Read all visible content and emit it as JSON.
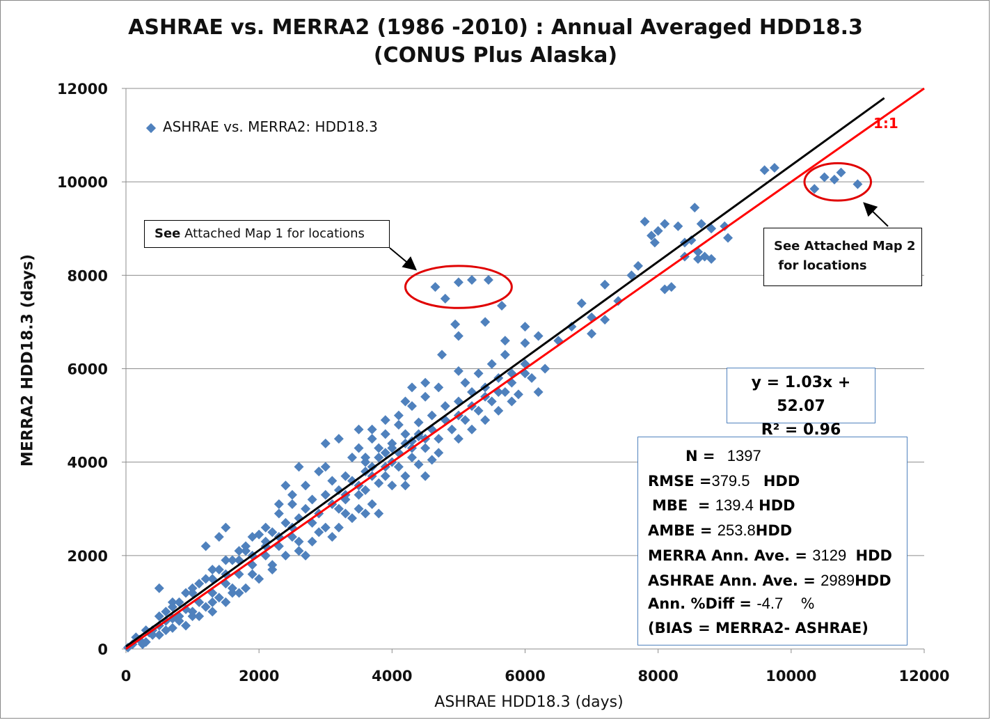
{
  "chart_data": {
    "type": "scatter",
    "title": "ASHRAE vs. MERRA2 (1986 -2010) : Annual Averaged HDD18.3",
    "subtitle": "(CONUS Plus Alaska)",
    "xlabel": "ASHRAE HDD18.3 (days)",
    "ylabel": "MERRA2 HDD18.3 (days)",
    "xlim": [
      0,
      12000
    ],
    "ylim": [
      0,
      12000
    ],
    "xticks": [
      "0",
      "2000",
      "4000",
      "6000",
      "8000",
      "10000",
      "12000"
    ],
    "yticks": [
      "0",
      "2000",
      "4000",
      "6000",
      "8000",
      "10000",
      "12000"
    ],
    "grid": "horizontal",
    "legend_position": "top-left",
    "series": [
      {
        "name": "ASHRAE vs. MERRA2: HDD18.3",
        "color": "#4f81bd",
        "marker": "diamond",
        "points": [
          [
            4650,
            7750
          ],
          [
            4800,
            7500
          ],
          [
            5000,
            7850
          ],
          [
            5200,
            7900
          ],
          [
            5450,
            7900
          ],
          [
            5650,
            7350
          ],
          [
            4950,
            6950
          ],
          [
            5000,
            6700
          ],
          [
            5400,
            7000
          ],
          [
            4750,
            6300
          ],
          [
            5000,
            5950
          ],
          [
            5700,
            6600
          ],
          [
            6000,
            6900
          ],
          [
            6000,
            6550
          ],
          [
            6200,
            6700
          ],
          [
            6500,
            6600
          ],
          [
            6850,
            7400
          ],
          [
            6700,
            6900
          ],
          [
            7000,
            7100
          ],
          [
            7000,
            6750
          ],
          [
            7200,
            7050
          ],
          [
            7200,
            7800
          ],
          [
            7400,
            7450
          ],
          [
            7600,
            8000
          ],
          [
            7700,
            8200
          ],
          [
            7800,
            9150
          ],
          [
            7900,
            8850
          ],
          [
            8000,
            8950
          ],
          [
            7950,
            8700
          ],
          [
            8100,
            9100
          ],
          [
            8300,
            9050
          ],
          [
            8500,
            8750
          ],
          [
            8550,
            9450
          ],
          [
            8650,
            9100
          ],
          [
            8800,
            9000
          ],
          [
            8400,
            8700
          ],
          [
            8600,
            8500
          ],
          [
            8200,
            7750
          ],
          [
            8100,
            7700
          ],
          [
            8400,
            8400
          ],
          [
            8600,
            8350
          ],
          [
            8700,
            8400
          ],
          [
            8800,
            8350
          ],
          [
            9000,
            9050
          ],
          [
            9050,
            8800
          ],
          [
            9600,
            10250
          ],
          [
            9750,
            10300
          ],
          [
            10350,
            9850
          ],
          [
            10500,
            10100
          ],
          [
            10650,
            10050
          ],
          [
            10750,
            10200
          ],
          [
            11000,
            9950
          ],
          [
            4400,
            4550
          ],
          [
            4300,
            4450
          ],
          [
            4600,
            4050
          ],
          [
            4500,
            3700
          ],
          [
            4200,
            3500
          ],
          [
            3000,
            4400
          ],
          [
            3500,
            4700
          ],
          [
            2600,
            3900
          ],
          [
            2900,
            3800
          ],
          [
            2400,
            3500
          ],
          [
            1500,
            2600
          ],
          [
            1400,
            2400
          ],
          [
            1200,
            2200
          ],
          [
            1800,
            2200
          ],
          [
            2000,
            2450
          ],
          [
            2300,
            3100
          ],
          [
            2500,
            2600
          ],
          [
            2200,
            2500
          ],
          [
            2800,
            3200
          ],
          [
            3100,
            3600
          ],
          [
            3300,
            3700
          ],
          [
            3600,
            3800
          ],
          [
            3700,
            3900
          ],
          [
            3900,
            4200
          ],
          [
            4000,
            4400
          ],
          [
            4200,
            4600
          ],
          [
            4400,
            4850
          ],
          [
            4600,
            5000
          ],
          [
            4800,
            5200
          ],
          [
            5000,
            5300
          ],
          [
            5200,
            5500
          ],
          [
            5400,
            5600
          ],
          [
            5600,
            5800
          ],
          [
            5800,
            5900
          ],
          [
            6000,
            6100
          ],
          [
            3300,
            3200
          ],
          [
            3500,
            3300
          ],
          [
            3800,
            3550
          ],
          [
            3800,
            2900
          ],
          [
            3200,
            3000
          ],
          [
            2800,
            2700
          ],
          [
            2500,
            2400
          ],
          [
            2300,
            2200
          ],
          [
            2100,
            2000
          ],
          [
            1900,
            1800
          ],
          [
            1700,
            1600
          ],
          [
            1500,
            1400
          ],
          [
            1300,
            1200
          ],
          [
            1100,
            1000
          ],
          [
            900,
            850
          ],
          [
            700,
            650
          ],
          [
            500,
            500
          ],
          [
            350,
            350
          ],
          [
            200,
            200
          ],
          [
            100,
            100
          ],
          [
            30,
            30
          ],
          [
            1000,
            1300
          ],
          [
            700,
            1000
          ],
          [
            500,
            1300
          ],
          [
            1800,
            1300
          ],
          [
            1600,
            1200
          ],
          [
            1400,
            1100
          ],
          [
            1200,
            900
          ],
          [
            1000,
            700
          ],
          [
            800,
            600
          ],
          [
            600,
            400
          ],
          [
            400,
            300
          ],
          [
            300,
            150
          ],
          [
            2200,
            1800
          ],
          [
            2600,
            2100
          ],
          [
            2800,
            2300
          ],
          [
            3000,
            2600
          ],
          [
            3300,
            2900
          ],
          [
            3500,
            3000
          ],
          [
            3700,
            3100
          ],
          [
            4000,
            3500
          ],
          [
            4200,
            3700
          ],
          [
            4400,
            3950
          ],
          [
            4700,
            4200
          ],
          [
            5000,
            4500
          ],
          [
            5200,
            4700
          ],
          [
            5400,
            4900
          ],
          [
            5600,
            5100
          ],
          [
            5800,
            5300
          ],
          [
            6100,
            5800
          ],
          [
            6300,
            6000
          ],
          [
            6200,
            5500
          ],
          [
            5900,
            5450
          ],
          [
            2000,
            1500
          ],
          [
            1700,
            1200
          ],
          [
            2700,
            2000
          ],
          [
            3100,
            2400
          ],
          [
            3600,
            3400
          ],
          [
            3900,
            3700
          ],
          [
            4100,
            3900
          ],
          [
            4300,
            4100
          ],
          [
            4500,
            4300
          ],
          [
            4700,
            4500
          ],
          [
            4900,
            4700
          ],
          [
            5100,
            4900
          ],
          [
            5300,
            5100
          ],
          [
            5500,
            5300
          ],
          [
            5700,
            5500
          ],
          [
            2100,
            2300
          ],
          [
            2400,
            2700
          ],
          [
            2700,
            3000
          ],
          [
            3000,
            3300
          ],
          [
            3200,
            3400
          ],
          [
            3400,
            3600
          ],
          [
            3600,
            4100
          ],
          [
            3800,
            4300
          ],
          [
            4100,
            4800
          ],
          [
            4300,
            5200
          ],
          [
            4500,
            5400
          ],
          [
            4700,
            5600
          ],
          [
            5100,
            5700
          ],
          [
            5300,
            5900
          ],
          [
            5500,
            6100
          ],
          [
            5700,
            6300
          ],
          [
            600,
            800
          ],
          [
            800,
            1000
          ],
          [
            1000,
            1200
          ],
          [
            1200,
            1500
          ],
          [
            1400,
            1700
          ],
          [
            1600,
            1900
          ],
          [
            1800,
            2100
          ],
          [
            3500,
            4300
          ],
          [
            3700,
            4500
          ],
          [
            3900,
            4600
          ],
          [
            4100,
            4200
          ],
          [
            4300,
            4300
          ],
          [
            4500,
            4500
          ],
          [
            4600,
            4700
          ],
          [
            4800,
            4900
          ],
          [
            5000,
            5000
          ],
          [
            5200,
            5200
          ],
          [
            5400,
            5400
          ],
          [
            5600,
            5500
          ],
          [
            5800,
            5700
          ],
          [
            6000,
            5900
          ],
          [
            2500,
            3100
          ],
          [
            2600,
            2800
          ],
          [
            2900,
            2900
          ],
          [
            3100,
            3100
          ],
          [
            3300,
            3300
          ],
          [
            3500,
            3500
          ],
          [
            3700,
            3700
          ],
          [
            3900,
            3900
          ],
          [
            4000,
            4000
          ],
          [
            1300,
            1500
          ],
          [
            1500,
            1600
          ],
          [
            1700,
            1900
          ],
          [
            1900,
            2000
          ],
          [
            2100,
            2200
          ],
          [
            2300,
            2400
          ],
          [
            3400,
            4100
          ],
          [
            3600,
            4000
          ],
          [
            3800,
            4100
          ],
          [
            4000,
            4300
          ],
          [
            4200,
            4400
          ],
          [
            4400,
            4600
          ],
          [
            3200,
            4500
          ],
          [
            3000,
            3900
          ],
          [
            2700,
            3500
          ],
          [
            2500,
            3300
          ],
          [
            2300,
            2900
          ],
          [
            2100,
            2600
          ],
          [
            1900,
            2400
          ],
          [
            1700,
            2100
          ],
          [
            1500,
            1900
          ],
          [
            1300,
            1700
          ],
          [
            1100,
            1400
          ],
          [
            900,
            1200
          ],
          [
            700,
            900
          ],
          [
            500,
            700
          ],
          [
            300,
            400
          ],
          [
            150,
            250
          ],
          [
            1500,
            1000
          ],
          [
            1300,
            800
          ],
          [
            1100,
            700
          ],
          [
            900,
            500
          ],
          [
            700,
            450
          ],
          [
            500,
            300
          ],
          [
            250,
            100
          ],
          [
            3700,
            4700
          ],
          [
            3900,
            4900
          ],
          [
            4100,
            5000
          ],
          [
            4300,
            5600
          ],
          [
            4500,
            5700
          ],
          [
            4200,
            5300
          ],
          [
            3400,
            2800
          ],
          [
            3600,
            2900
          ],
          [
            3200,
            2600
          ],
          [
            2900,
            2500
          ],
          [
            2600,
            2300
          ],
          [
            2400,
            2000
          ],
          [
            2200,
            1700
          ],
          [
            1900,
            1600
          ],
          [
            1600,
            1300
          ],
          [
            1300,
            1000
          ],
          [
            1000,
            800
          ],
          [
            800,
            700
          ],
          [
            600,
            600
          ],
          [
            400,
            400
          ]
        ]
      }
    ],
    "lines": [
      {
        "name": "regression",
        "label": "",
        "slope": 1.03,
        "intercept": 52.07,
        "x_range": [
          0,
          11400
        ],
        "color": "#000000"
      },
      {
        "name": "one-to-one",
        "label": "1:1",
        "slope": 1.0,
        "intercept": 0,
        "x_range": [
          0,
          12000
        ],
        "color": "#ff0000"
      }
    ],
    "highlight_ellipses": [
      {
        "center": [
          5000,
          7750
        ],
        "rx": 800,
        "ry": 450,
        "color": "#e00000"
      },
      {
        "center": [
          10700,
          10000
        ],
        "rx": 500,
        "ry": 400,
        "color": "#e00000"
      }
    ]
  },
  "annotations": {
    "map1_bold": "See",
    "map1_rest": " Attached Map 1 for locations",
    "map2_line1": "See Attached Map 2",
    "map2_line2": " for locations",
    "one_to_one_label": "1:1"
  },
  "equation": {
    "line1": "y = 1.03x + 52.07",
    "line2": "R² = 0.96"
  },
  "stats": {
    "n_label": "N =",
    "n_value": "1397",
    "rmse_label": "RMSE =",
    "rmse_value": "379.5",
    "rmse_unit": "HDD",
    "mbe_label": "MBE  =",
    "mbe_value": "139.4",
    "mbe_unit": "HDD",
    "ambe_label": "AMBE =",
    "ambe_value": "253.8",
    "ambe_unit": "HDD",
    "merra_label": "MERRA Ann. Ave. =",
    "merra_value": "3129",
    "merra_unit": "HDD",
    "ashrae_label": "ASHRAE Ann. Ave. =",
    "ashrae_value": "2989",
    "ashrae_unit": "HDD",
    "diff_label": "Ann. %Diff =",
    "diff_value": "-4.7",
    "diff_unit": "%",
    "bias_note": "(BIAS = MERRA2- ASHRAE)"
  }
}
